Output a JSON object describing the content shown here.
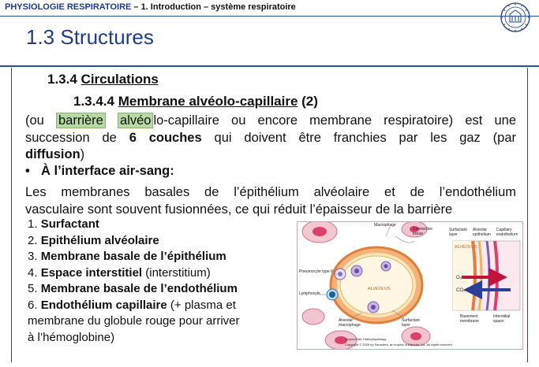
{
  "header": {
    "brand": "PHYSIOLOGIE RESPIRATOIRE",
    "rest": " – 1. Introduction – système respiratoire"
  },
  "logo_icon": "university-seal-icon",
  "title": "1.3 Structures",
  "section": {
    "num": "1.3.4 ",
    "label": "Circulations"
  },
  "subsection": {
    "num": "1.3.4.4 ",
    "label": "Membrane alvéolo-capillaire",
    "suffix": " (2)"
  },
  "para1": {
    "line1_a": "(ou ",
    "line1_hl1": "barrière",
    "line1_sp": " ",
    "line1_hl2": "alvéo",
    "line1_b": "lo-capillaire ou encore membrane respiratoire) est une",
    "line2_a": "succession de ",
    "line2_bold": "6 couches",
    "line2_b": " qui doivent être franchies par les gaz (par",
    "line3_bold": "diffusion",
    "line3_b": ")"
  },
  "bullet": {
    "symbol": "•",
    "text": "À l’interface air-sang:"
  },
  "para2": {
    "line1": "Les membranes basales de l’épithélium alvéolaire et de l’endothélium",
    "line2": "vasculaire sont souvent fusionnées, ce qui réduit l’épaisseur de la barrière"
  },
  "list": [
    {
      "num": "1. ",
      "bold": "Surfactant",
      "rest": ""
    },
    {
      "num": "2. ",
      "bold": "Epithélium alvéolaire",
      "rest": ""
    },
    {
      "num": "3. ",
      "bold": "Membrane basale de l’épithélium",
      "rest": ""
    },
    {
      "num": "4. ",
      "bold": "Espace interstitiel",
      "rest": " (interstitium)"
    },
    {
      "num": "5. ",
      "bold": "Membrane basale de l’endothélium",
      "rest": ""
    },
    {
      "num": "6. ",
      "bold": "Endothélium capillaire",
      "rest": " (+ plasma et"
    },
    {
      "num": "",
      "bold": "",
      "rest": "membrane du globule rouge pour arriver"
    },
    {
      "num": "",
      "bold": "",
      "rest": "à l’hémoglobine)"
    }
  ],
  "figure": {
    "macrophage": "Macrophage",
    "connective": "Connective",
    "tissue": "tissue",
    "pneumocyte": "Pneumocyte type II",
    "lymphocyte": "Lymphocyte",
    "alveolus": "ALVÉOLUS",
    "alv_macro1": "Alveolar",
    "alv_macro2": "macrophage",
    "surf1": "Surfactant",
    "surf2": "layer",
    "inset_surf1": "Surfactant",
    "inset_surf2": "layer",
    "inset_alv1": "Alveolar",
    "inset_alv2": "epithelium",
    "inset_cap1": "Capillary",
    "inset_cap2": "endothelium",
    "inset_alveolus": "ALVÉOLUS",
    "o2": "O₂",
    "co2": "CO₂",
    "basement1": "Basement",
    "basement2": "membrane",
    "interstitial1": "Interstitial",
    "interstitial2": "space",
    "credit1": "Guyton/Hall: Pathophysiology",
    "credit2": "Copyright © 2009 by Saunders, an imprint of Elsevier, Inc. All rights reserved."
  }
}
